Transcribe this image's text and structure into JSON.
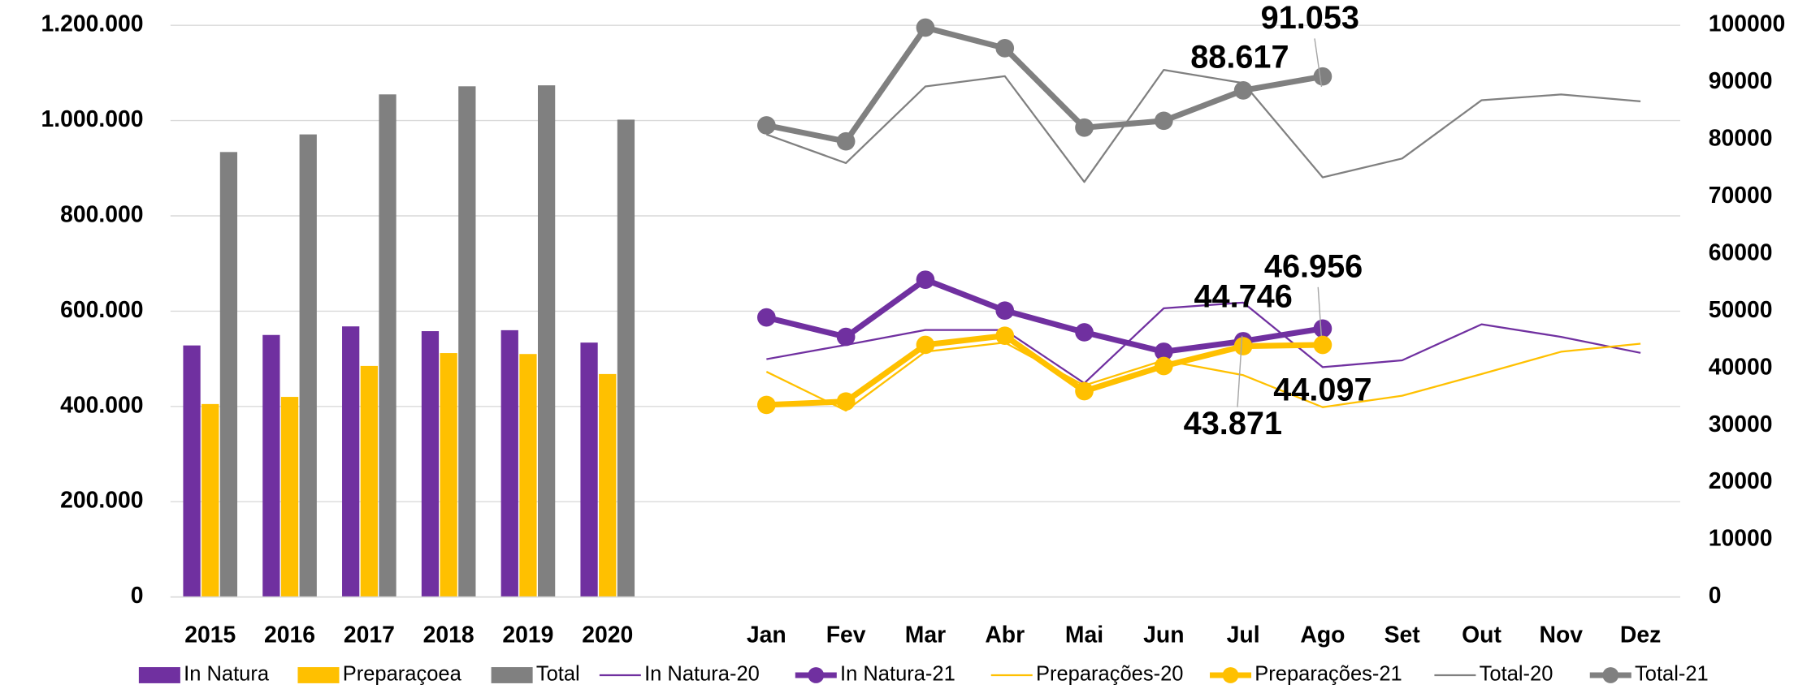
{
  "chart_data": [
    {
      "type": "bar",
      "categories": [
        "2015",
        "2016",
        "2017",
        "2018",
        "2019",
        "2020"
      ],
      "series": [
        {
          "name": "In Natura",
          "color": "#7030a0",
          "values": [
            528000,
            550000,
            568000,
            558000,
            560000,
            534000
          ]
        },
        {
          "name": "Preparaçoea",
          "color": "#ffc000",
          "values": [
            405000,
            420000,
            485000,
            512000,
            510000,
            468000
          ]
        },
        {
          "name": "Total",
          "color": "#808080",
          "values": [
            934000,
            971000,
            1055000,
            1072000,
            1074000,
            1002000
          ]
        }
      ],
      "ylim": [
        0,
        1200000
      ],
      "yticks": [
        0,
        {
          "value": 200000,
          "label": "200.000"
        },
        {
          "value": 400000,
          "label": "400.000"
        },
        {
          "value": 600000,
          "label": "600.000"
        },
        {
          "value": 800000,
          "label": "800.000"
        },
        {
          "value": 1000000,
          "label": "1.000.000"
        },
        {
          "value": 1200000,
          "label": "1.200.000"
        }
      ],
      "grid": true
    },
    {
      "type": "line",
      "categories": [
        "Jan",
        "Fev",
        "Mar",
        "Abr",
        "Mai",
        "Jun",
        "Jul",
        "Ago",
        "Set",
        "Out",
        "Nov",
        "Dez"
      ],
      "series": [
        {
          "name": "In Natura-20",
          "color": "#7030a0",
          "axis": "y2",
          "values": [
            41600,
            44100,
            46700,
            46700,
            37400,
            50500,
            51500,
            40200,
            41400,
            47700,
            45500,
            42700
          ]
        },
        {
          "name": "In Natura-21",
          "color": "#7030a0",
          "axis": "y2",
          "markers": true,
          "values": [
            48900,
            45500,
            55500,
            50100,
            46300,
            42900,
            44746,
            46956,
            null,
            null,
            null,
            null
          ],
          "value_labels": [
            null,
            null,
            null,
            null,
            null,
            null,
            "44.746",
            "46.956",
            null,
            null,
            null,
            null
          ]
        },
        {
          "name": "Preparações-20",
          "color": "#ffc000",
          "axis": "y2",
          "values": [
            39400,
            32600,
            42900,
            44500,
            37000,
            41400,
            38800,
            33200,
            35200,
            39000,
            42900,
            44300
          ]
        },
        {
          "name": "Preparações-21",
          "color": "#ffc000",
          "axis": "y2",
          "markers": true,
          "values": [
            33600,
            34200,
            44100,
            45700,
            36000,
            40400,
            43871,
            44097,
            null,
            null,
            null,
            null
          ],
          "value_labels": [
            null,
            null,
            null,
            null,
            null,
            null,
            "43.871",
            "44.097",
            null,
            null,
            null,
            null
          ]
        },
        {
          "name": "Total-20",
          "color": "#808080",
          "axis": "y2",
          "values": [
            80900,
            75900,
            89300,
            91100,
            72600,
            92200,
            89900,
            73400,
            76700,
            86900,
            87900,
            86700
          ]
        },
        {
          "name": "Total-21",
          "color": "#808080",
          "axis": "y2",
          "markers": true,
          "values": [
            82500,
            79700,
            99600,
            96000,
            82100,
            83300,
            88617,
            91053,
            null,
            null,
            null,
            null
          ],
          "value_labels": [
            null,
            null,
            null,
            null,
            null,
            null,
            "88.617",
            "91.053",
            null,
            null,
            null,
            null
          ]
        }
      ],
      "y2lim": [
        0,
        100000
      ],
      "y2ticks": [
        0,
        10000,
        20000,
        30000,
        40000,
        50000,
        60000,
        70000,
        80000,
        90000,
        100000
      ]
    }
  ]
}
